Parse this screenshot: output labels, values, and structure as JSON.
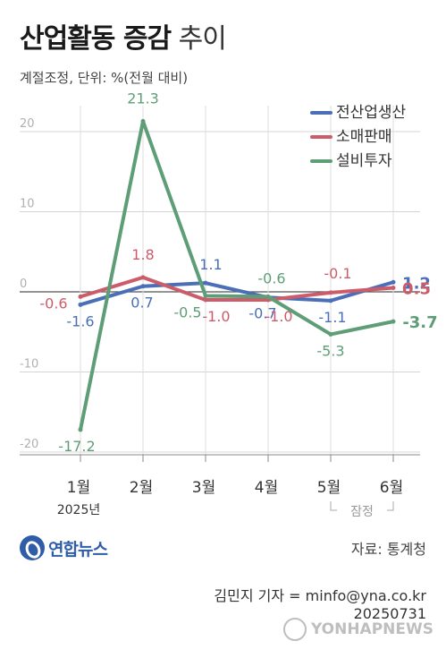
{
  "header": {
    "title_bold": "산업활동 증감",
    "title_light": "추이",
    "subtitle": "계절조정, 단위: %(전월 대비)"
  },
  "chart_data": {
    "type": "line",
    "categories": [
      "1월",
      "2월",
      "3월",
      "4월",
      "5월",
      "6월"
    ],
    "year_label": "2025년",
    "provisional_label": "잠정",
    "provisional_categories": [
      "5월",
      "6월"
    ],
    "yticks": [
      20,
      10,
      0,
      -10,
      -20
    ],
    "ylim": [
      -20,
      22
    ],
    "grid": true,
    "legend_position": "top-right",
    "series": [
      {
        "name": "전산업생산",
        "color": "#4a6fb8",
        "values": [
          -1.6,
          0.7,
          1.1,
          -0.7,
          -1.1,
          1.2
        ],
        "labels": [
          "-1.6",
          "0.7",
          "1.1",
          "-0.7",
          "-1.1",
          "1.2"
        ]
      },
      {
        "name": "소매판매",
        "color": "#cc5c6a",
        "values": [
          -0.6,
          1.8,
          -1.0,
          -1.0,
          -0.1,
          0.5
        ],
        "labels": [
          "-0.6",
          "1.8",
          "-1.0",
          "-1.0",
          "-0.1",
          "0.5"
        ]
      },
      {
        "name": "설비투자",
        "color": "#5e9e76",
        "values": [
          -17.2,
          21.3,
          -0.5,
          -0.6,
          -5.3,
          -3.7
        ],
        "labels": [
          "-17.2",
          "21.3",
          "-0.5",
          "-0.6",
          "-5.3",
          "-3.7"
        ]
      }
    ]
  },
  "footer": {
    "logo_text": "연합뉴스",
    "source": "자료: 통계청",
    "credit_line1": "김민지 기자 = minfo@yna.co.kr",
    "credit_line2": "20250731",
    "watermark": "YONHAPNEWS"
  }
}
